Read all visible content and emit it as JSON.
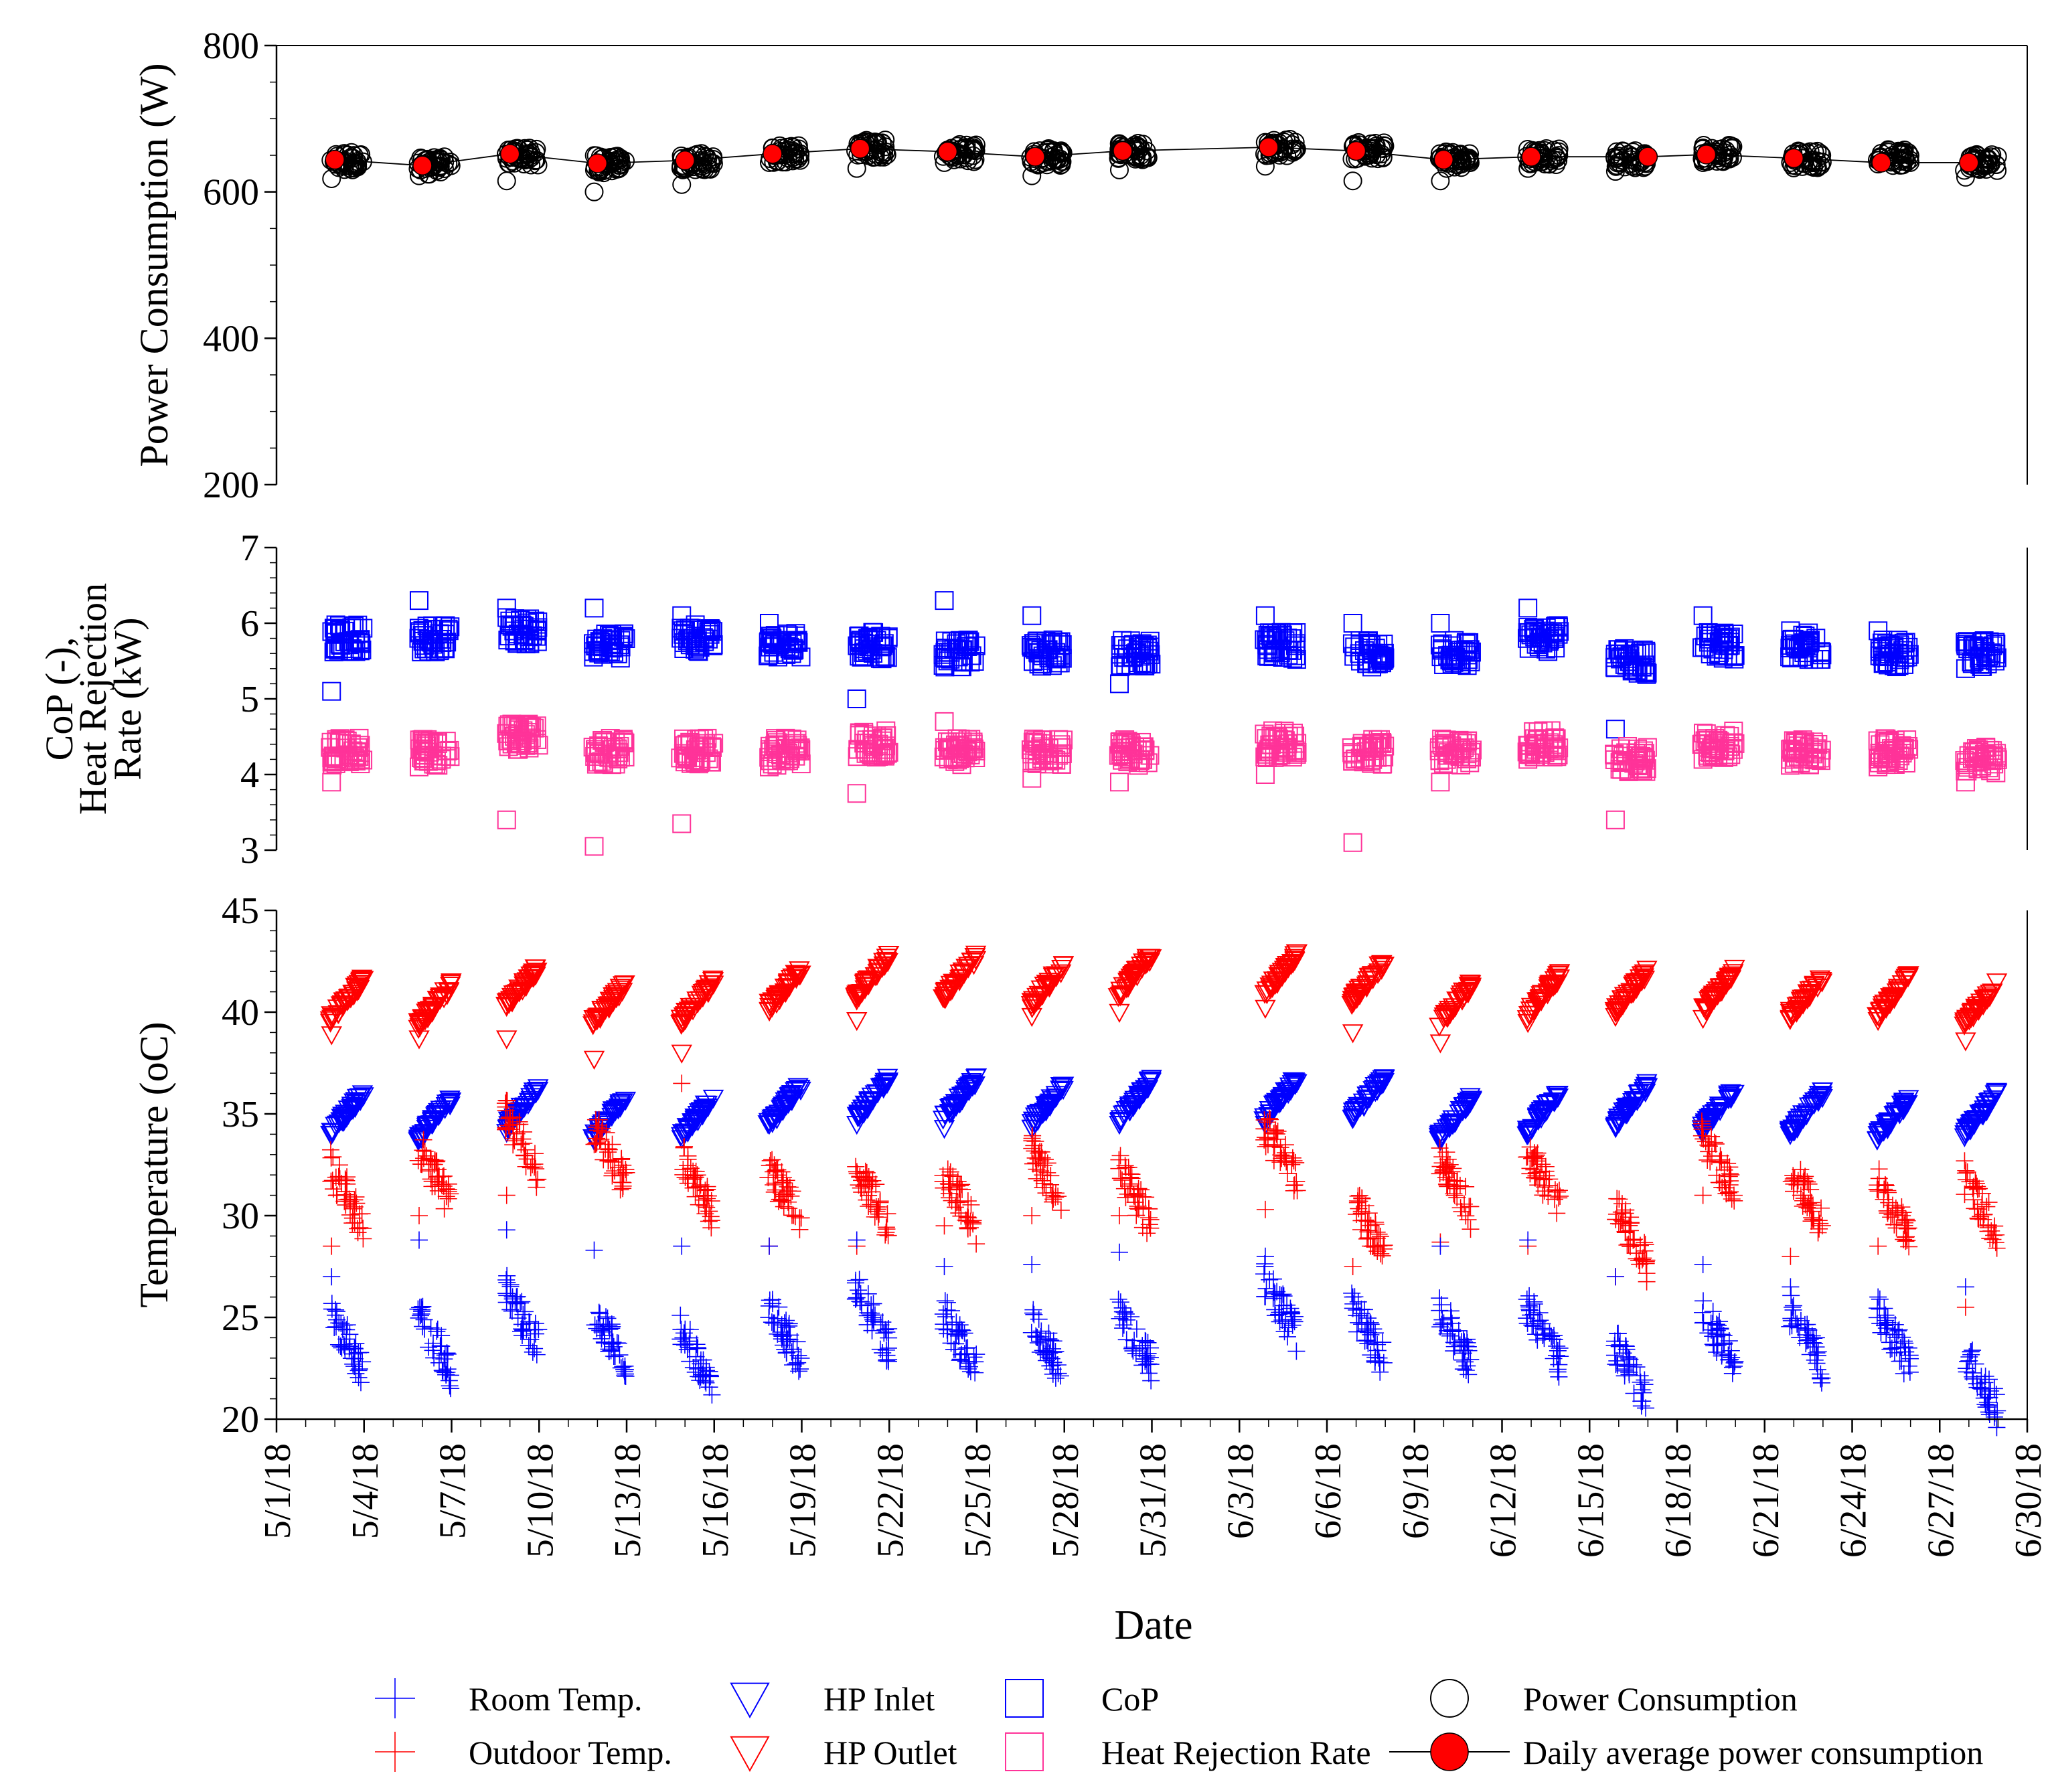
{
  "chart_data": {
    "type": "scatter",
    "xlabel": "Date",
    "x_dates": [
      "5/1/18",
      "5/4/18",
      "5/7/18",
      "5/10/18",
      "5/13/18",
      "5/16/18",
      "5/19/18",
      "5/22/18",
      "5/25/18",
      "5/28/18",
      "5/31/18",
      "6/3/18",
      "6/6/18",
      "6/9/18",
      "6/12/18",
      "6/15/18",
      "6/18/18",
      "6/21/18",
      "6/24/18",
      "6/27/18",
      "6/30/18"
    ],
    "xlim_days": [
      0,
      60
    ],
    "panels": [
      {
        "id": "power",
        "ylabel": "Power Consumption (W)",
        "ylim": [
          200,
          800
        ],
        "yticks": [
          "200",
          "400",
          "600",
          "800"
        ],
        "series": [
          {
            "name": "Power Consumption",
            "marker": "circle-open",
            "color": "#000000",
            "days": [
              2.3,
              5.3,
              8.3,
              11.3,
              14.3,
              17.3,
              20.3,
              23.3,
              26.3,
              29.3,
              34.3,
              37.3,
              40.3,
              43.3,
              46.3,
              49.3,
              52.3,
              55.3,
              58.3
            ],
            "centers": [
              642,
              636,
              648,
              638,
              641,
              652,
              659,
              653,
              648,
              656,
              661,
              656,
              644,
              648,
              645,
              653,
              644,
              648,
              641
            ],
            "outliers": [
              618,
              622,
              615,
              600,
              610,
              640,
              632,
              640,
              622,
              630,
              635,
              615,
              615,
              632,
              628,
              640,
              640,
              638,
              620
            ]
          },
          {
            "name": "Daily average power consumption",
            "marker": "circle-filled-line",
            "color": "#ff0000",
            "days": [
              2,
              5,
              8,
              11,
              14,
              17,
              20,
              23,
              26,
              29,
              34,
              37,
              40,
              43,
              47,
              49,
              52,
              55,
              58
            ],
            "values": [
              644,
              636,
              652,
              639,
              643,
              652,
              659,
              655,
              648,
              656,
              661,
              656,
              644,
              648,
              648,
              651,
              646,
              640,
              640
            ]
          }
        ]
      },
      {
        "id": "cop",
        "ylabel_lines": [
          "CoP (-),",
          "Heat Rejection",
          "Rate (kW)"
        ],
        "ylim": [
          3,
          7
        ],
        "yticks": [
          "3",
          "4",
          "5",
          "6",
          "7"
        ],
        "series": [
          {
            "name": "CoP",
            "marker": "square-open",
            "color": "#0000ff",
            "days": [
              2.3,
              5.3,
              8.3,
              11.3,
              14.3,
              17.3,
              20.3,
              23.3,
              26.3,
              29.3,
              34.3,
              37.3,
              40.3,
              43.3,
              46.3,
              49.3,
              52.3,
              55.3,
              58.3
            ],
            "centers": [
              5.8,
              5.8,
              5.9,
              5.7,
              5.8,
              5.7,
              5.7,
              5.6,
              5.6,
              5.6,
              5.7,
              5.6,
              5.6,
              5.8,
              5.5,
              5.7,
              5.7,
              5.6,
              5.6
            ],
            "outliers": [
              5.1,
              6.3,
              6.2,
              6.2,
              6.1,
              6.0,
              5.0,
              6.3,
              6.1,
              5.2,
              6.1,
              6.0,
              6.0,
              6.2,
              4.6,
              6.1,
              5.9,
              5.9,
              5.4
            ]
          },
          {
            "name": "Heat Rejection Rate",
            "marker": "square-open",
            "color": "#ff3399",
            "days": [
              2.3,
              5.3,
              8.3,
              11.3,
              14.3,
              17.3,
              20.3,
              23.3,
              26.3,
              29.3,
              34.3,
              37.3,
              40.3,
              43.3,
              46.3,
              49.3,
              52.3,
              55.3,
              58.3
            ],
            "centers": [
              4.3,
              4.3,
              4.5,
              4.3,
              4.3,
              4.3,
              4.4,
              4.3,
              4.3,
              4.3,
              4.4,
              4.3,
              4.3,
              4.4,
              4.2,
              4.4,
              4.3,
              4.3,
              4.2
            ],
            "outliers": [
              3.9,
              4.1,
              3.4,
              3.05,
              3.35,
              4.1,
              3.75,
              4.7,
              3.95,
              3.9,
              4.0,
              3.1,
              3.9,
              4.2,
              3.4,
              4.2,
              4.2,
              4.1,
              3.9
            ]
          }
        ]
      },
      {
        "id": "temp",
        "ylabel": "Temperature (oC)",
        "ylim": [
          20,
          45
        ],
        "yticks": [
          "20",
          "25",
          "30",
          "35",
          "40",
          "45"
        ],
        "series": [
          {
            "name": "HP Outlet",
            "marker": "triangle-down-open",
            "color": "#ff0000",
            "days": [
              2.3,
              5.3,
              8.3,
              11.3,
              14.3,
              17.3,
              20.3,
              23.3,
              26.3,
              29.3,
              34.3,
              37.3,
              40.3,
              43.3,
              46.3,
              49.3,
              52.3,
              55.3,
              58.3
            ],
            "centers": [
              40.8,
              40.5,
              41.4,
              40.6,
              40.7,
              41.3,
              41.9,
              41.9,
              41.5,
              42.0,
              42.0,
              41.7,
              40.6,
              41.0,
              41.2,
              41.2,
              40.9,
              41.0,
              40.6
            ],
            "outliers": [
              38.9,
              38.7,
              38.7,
              37.7,
              38.0,
              40.5,
              39.6,
              40.7,
              39.8,
              40.0,
              40.2,
              39.0,
              38.5,
              39.5,
              39.8,
              39.7,
              40.1,
              39.6,
              38.6
            ]
          },
          {
            "name": "HP Inlet",
            "marker": "triangle-down-open",
            "color": "#0000ff",
            "days": [
              2.3,
              5.3,
              8.3,
              11.3,
              14.3,
              17.3,
              20.3,
              23.3,
              26.3,
              29.3,
              34.3,
              37.3,
              40.3,
              43.3,
              46.3,
              49.3,
              52.3,
              55.3,
              58.3
            ],
            "centers": [
              35.2,
              34.9,
              35.5,
              35.0,
              35.0,
              35.6,
              35.9,
              35.9,
              35.6,
              35.8,
              35.9,
              36.0,
              35.0,
              35.3,
              35.6,
              35.4,
              35.2,
              35.0,
              35.2
            ],
            "outliers": [
              34.0,
              33.8,
              34.1,
              33.7,
              33.8,
              34.5,
              34.5,
              34.3,
              34.3,
              34.5,
              34.5,
              34.8,
              33.7,
              34.0,
              34.4,
              34.1,
              34.2,
              34.0,
              34.0
            ]
          },
          {
            "name": "Outdoor Temp.",
            "marker": "plus",
            "color": "#ff0000",
            "days": [
              2.3,
              5.3,
              8.3,
              11.3,
              14.3,
              17.3,
              20.3,
              23.3,
              26.3,
              29.3,
              34.3,
              37.3,
              40.3,
              43.3,
              46.3,
              49.3,
              52.3,
              55.3,
              58.3
            ],
            "centers": [
              31.0,
              32.0,
              33.5,
              33.0,
              31.5,
              31.0,
              31.0,
              30.8,
              31.8,
              31.0,
              33.0,
              29.5,
              31.5,
              31.8,
              29.0,
              32.5,
              31.0,
              30.5,
              30.5
            ],
            "outliers": [
              28.5,
              30.0,
              31.0,
              33.5,
              36.5,
              28.5,
              28.5,
              29.5,
              30.0,
              30.0,
              30.3,
              27.5,
              28.7,
              28.5,
              27.0,
              31.0,
              28.0,
              28.5,
              25.5
            ]
          },
          {
            "name": "Room Temp.",
            "marker": "plus",
            "color": "#0000ff",
            "days": [
              2.3,
              5.3,
              8.3,
              11.3,
              14.3,
              17.3,
              20.3,
              23.3,
              26.3,
              29.3,
              34.3,
              37.3,
              40.3,
              43.3,
              46.3,
              49.3,
              52.3,
              55.3,
              58.3
            ],
            "centers": [
              23.8,
              23.8,
              25.0,
              24.0,
              23.0,
              24.2,
              25.0,
              23.8,
              23.5,
              24.0,
              25.5,
              24.2,
              24.0,
              24.2,
              22.3,
              24.0,
              24.0,
              24.0,
              21.8
            ],
            "outliers": [
              27.0,
              28.8,
              29.3,
              28.3,
              28.5,
              28.5,
              28.8,
              27.5,
              27.6,
              28.2,
              28.0,
              26.0,
              28.5,
              28.8,
              27.0,
              27.6,
              26.5,
              26.0,
              26.5
            ]
          }
        ]
      }
    ]
  },
  "legend": {
    "items": [
      {
        "label": "Room Temp.",
        "color": "#0000ff",
        "marker": "plus"
      },
      {
        "label": "HP Inlet",
        "color": "#0000ff",
        "marker": "triangle-down"
      },
      {
        "label": "CoP",
        "color": "#0000ff",
        "marker": "square"
      },
      {
        "label": "Power Consumption",
        "color": "#000000",
        "marker": "circle-open"
      },
      {
        "label": "Outdoor Temp.",
        "color": "#ff0000",
        "marker": "plus"
      },
      {
        "label": "HP Outlet",
        "color": "#ff0000",
        "marker": "triangle-down"
      },
      {
        "label": "Heat Rejection Rate",
        "color": "#ff3399",
        "marker": "square"
      },
      {
        "label": "Daily average power consumption",
        "color": "#ff0000",
        "marker": "circle-filled-line"
      }
    ]
  }
}
